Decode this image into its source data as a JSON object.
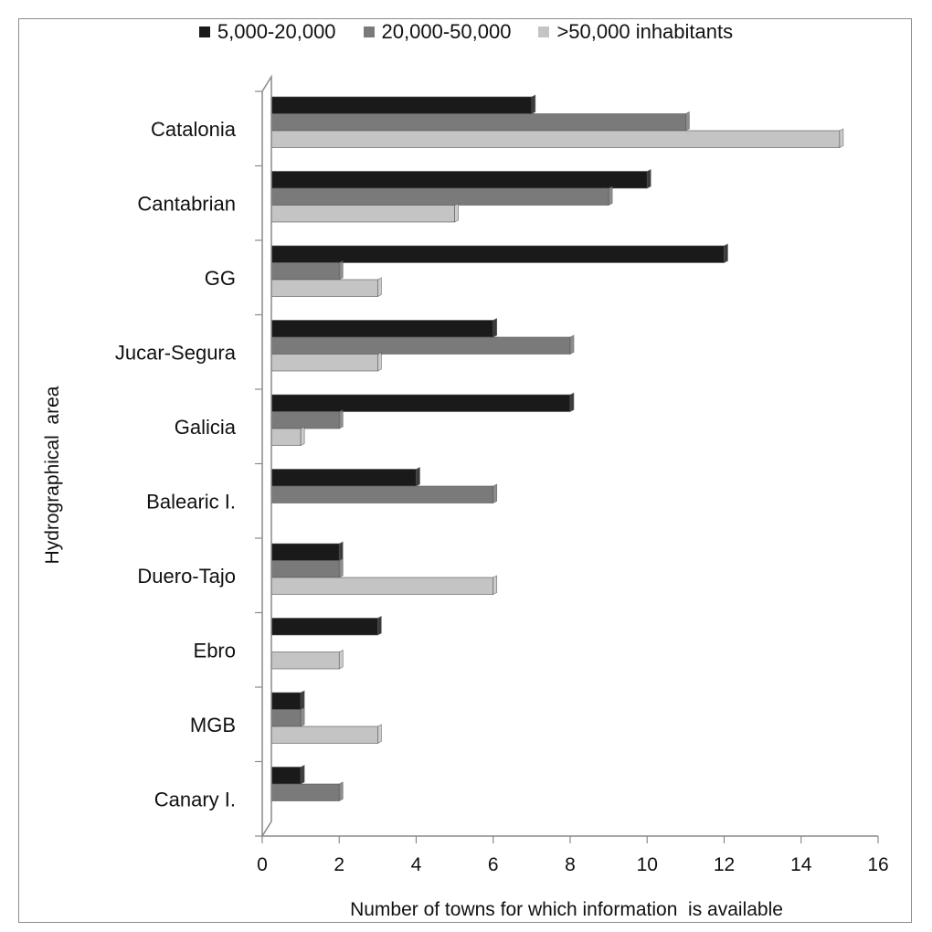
{
  "chart_data": {
    "type": "bar",
    "orientation": "horizontal",
    "categories": [
      "Catalonia",
      "Cantabrian",
      "GG",
      "Jucar-Segura",
      "Galicia",
      "Balearic I.",
      "Duero-Tajo",
      "Ebro",
      "MGB",
      "Canary I."
    ],
    "series": [
      {
        "name": "5,000-20,000",
        "color": "#1a1a1a",
        "values": [
          7,
          10,
          12,
          6,
          8,
          4,
          2,
          3,
          1,
          1
        ]
      },
      {
        "name": "20,000-50,000",
        "color": "#7a7a7a",
        "values": [
          11,
          9,
          2,
          8,
          2,
          6,
          2,
          0,
          1,
          2
        ]
      },
      {
        "name": ">50,000 inhabitants",
        "color": "#c4c4c4",
        "values": [
          15,
          5,
          3,
          3,
          1,
          0,
          6,
          2,
          3,
          0
        ]
      }
    ],
    "xlabel": "Number of towns for which information  is available",
    "ylabel": "Hydrographical  area",
    "xlim": [
      0,
      16
    ],
    "xticks": [
      0,
      2,
      4,
      6,
      8,
      10,
      12,
      14,
      16
    ],
    "legend_position": "top",
    "grid": false
  }
}
